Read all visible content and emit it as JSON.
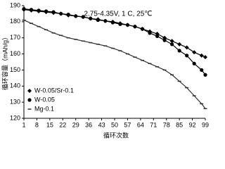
{
  "chart_data": {
    "type": "line",
    "annotation": "2.75-4.35V, 1 C, 25℃",
    "x_label": "循环次数",
    "y_label": "循环容量（mAh/g）",
    "x": [
      1,
      5,
      9,
      13,
      17,
      21,
      25,
      29,
      33,
      37,
      41,
      45,
      49,
      53,
      57,
      61,
      65,
      69,
      73,
      77,
      81,
      85,
      89,
      93,
      97,
      99
    ],
    "series": [
      {
        "name": "W-0.05/Sr-0.1",
        "color": "#000000",
        "marker": "diamond",
        "values": [
          187.5,
          187,
          186.5,
          186,
          185.5,
          185,
          184,
          183.5,
          183,
          182,
          181.5,
          180.5,
          180,
          179,
          178,
          177,
          175.5,
          174,
          172.5,
          170,
          168,
          166,
          164,
          161,
          159,
          158
        ]
      },
      {
        "name": "W-0.05",
        "color": "#000000",
        "marker": "circle",
        "values": [
          188,
          187.5,
          187,
          186.5,
          186,
          185,
          184.5,
          183.5,
          183,
          182,
          181,
          180.5,
          179.5,
          178.5,
          178,
          177,
          175.5,
          173,
          171,
          168.5,
          166,
          162,
          159,
          154,
          150,
          147
        ]
      },
      {
        "name": "Mg-0.1",
        "color": "#333333",
        "marker": "dash",
        "values": [
          181,
          179,
          177,
          175,
          173,
          171.5,
          170,
          169,
          168,
          167,
          166,
          165,
          163.5,
          162,
          160,
          158,
          156,
          154,
          152,
          150,
          147,
          143,
          139,
          134,
          129,
          126
        ]
      }
    ],
    "xlim": [
      1,
      99
    ],
    "xticks": [
      1,
      8,
      15,
      22,
      29,
      36,
      43,
      50,
      57,
      64,
      71,
      78,
      85,
      92,
      99
    ],
    "ylim": [
      120,
      190
    ],
    "yticks": [
      120,
      130,
      140,
      150,
      160,
      170,
      180,
      190
    ],
    "legend": "lower-left"
  }
}
